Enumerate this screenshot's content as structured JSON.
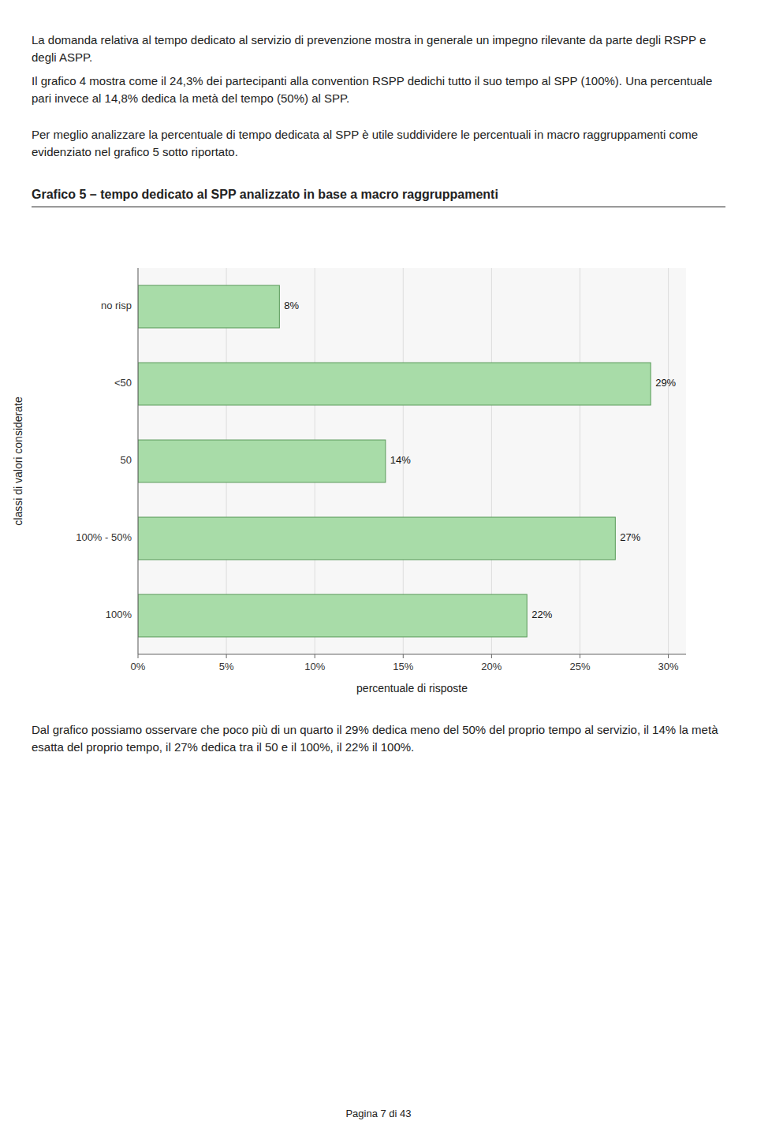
{
  "chart_data": {
    "type": "bar",
    "orientation": "horizontal",
    "title": "Grafico 5 – tempo dedicato al SPP analizzato in base a macro raggruppamenti",
    "categories": [
      "no risp",
      "<50",
      "50",
      "100% - 50%",
      "100%"
    ],
    "values": [
      8,
      29,
      14,
      27,
      22
    ],
    "value_labels": [
      "8%",
      "29%",
      "14%",
      "27%",
      "22%"
    ],
    "data_labels": true,
    "color": "#a8dca8",
    "xlabel": "percentuale di risposte",
    "ylabel": "classi di valori considerate",
    "xlim": [
      0,
      31
    ],
    "xticks": [
      {
        "value": 0,
        "label": "0%"
      },
      {
        "value": 5,
        "label": "5%"
      },
      {
        "value": 10,
        "label": "10%"
      },
      {
        "value": 15,
        "label": "15%"
      },
      {
        "value": 20,
        "label": "20%"
      },
      {
        "value": 25,
        "label": "25%"
      },
      {
        "value": 30,
        "label": "30%"
      }
    ],
    "grid": true
  },
  "texts": {
    "intro": [
      "La domanda relativa al tempo dedicato al servizio di prevenzione mostra in generale un impegno rilevante da parte degli RSPP e degli ASPP.",
      "Il grafico 4 mostra come il 24,3% dei partecipanti alla convention RSPP dedichi tutto il suo tempo al SPP (100%). Una percentuale pari invece al 14,8% dedica la metà del tempo (50%) al SPP.",
      "Per meglio analizzare la percentuale di tempo dedicata al SPP è utile suddividere le percentuali in macro raggruppamenti come evidenziato nel grafico 5 sotto riportato."
    ],
    "footer": "Dal grafico possiamo osservare che poco più di un quarto il 29% dedica meno del 50% del proprio tempo al servizio, il 14% la metà esatta del proprio tempo, il 27% dedica tra il 50 e il 100%, il 22% il 100%.",
    "page_number": "Pagina 7 di 43"
  }
}
